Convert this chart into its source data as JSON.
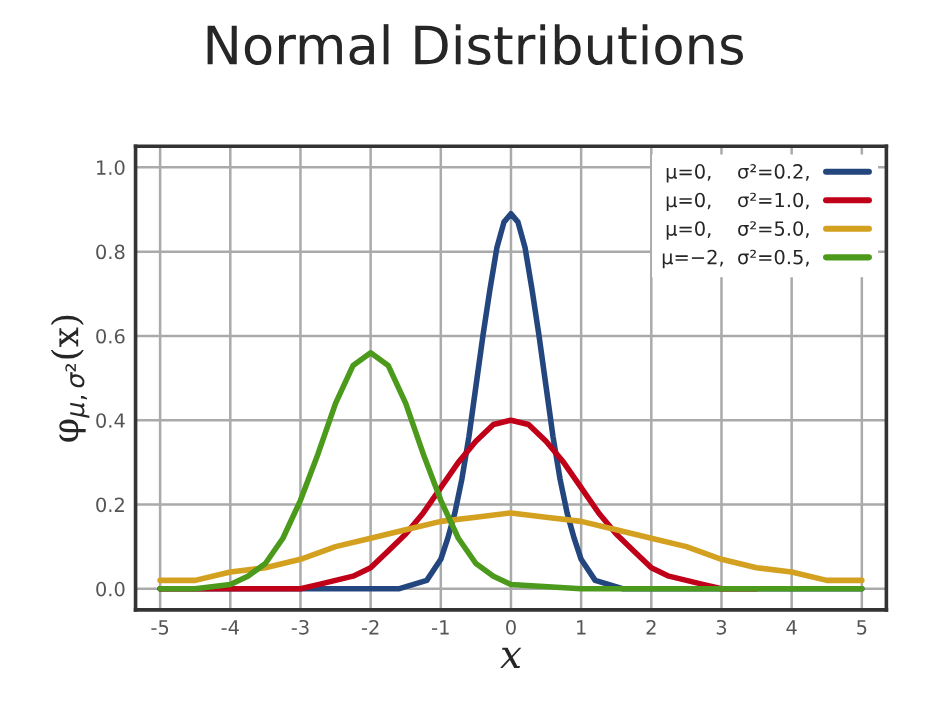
{
  "chart_data": {
    "type": "line",
    "title": "Normal Distributions",
    "xlabel": "x",
    "ylabel": "φ$_{μ,σ²}$(x)",
    "xlim": [
      -5.35,
      5.35
    ],
    "ylim": [
      -0.05,
      1.05
    ],
    "xticks": [
      -5,
      -4,
      -3,
      -2,
      -1,
      0,
      1,
      2,
      3,
      4,
      5
    ],
    "yticks": [
      {
        "value": 0,
        "label": "0.0"
      },
      0.2,
      0.4,
      0.6,
      0.8,
      {
        "value": 1,
        "label": "1.0"
      }
    ],
    "grid": true,
    "legend": "top right",
    "marker": "none",
    "line_style": "solid",
    "series": [
      {
        "name": "μ=0,    σ²=0.2,",
        "color": "#24467e",
        "x": [
          -5,
          -2,
          -1.6,
          -1.4,
          -1.2,
          -1,
          -0.9,
          -0.8,
          -0.7,
          -0.6,
          -0.5,
          -0.4,
          -0.3,
          -0.2,
          -0.1,
          0,
          0.1,
          0.2,
          0.3,
          0.4,
          0.5,
          0.6,
          0.7,
          0.8,
          0.9,
          1,
          1.2,
          1.4,
          1.6,
          2,
          5
        ],
        "values": [
          0,
          0,
          0,
          0.01,
          0.02,
          0.07,
          0.12,
          0.18,
          0.26,
          0.36,
          0.48,
          0.6,
          0.71,
          0.81,
          0.87,
          0.89,
          0.87,
          0.81,
          0.71,
          0.6,
          0.48,
          0.36,
          0.26,
          0.18,
          0.12,
          0.07,
          0.02,
          0.01,
          0,
          0,
          0
        ]
      },
      {
        "name": "μ=0,    σ²=1.0,",
        "color": "#c00018",
        "x": [
          -5,
          -4,
          -3.5,
          -3,
          -2.75,
          -2.5,
          -2.25,
          -2,
          -1.75,
          -1.5,
          -1.25,
          -1,
          -0.75,
          -0.5,
          -0.25,
          0,
          0.25,
          0.5,
          0.75,
          1,
          1.25,
          1.5,
          1.75,
          2,
          2.25,
          2.5,
          2.75,
          3,
          3.5
        ],
        "values": [
          0,
          0,
          0,
          0,
          0.01,
          0.02,
          0.03,
          0.05,
          0.09,
          0.13,
          0.18,
          0.24,
          0.3,
          0.35,
          0.39,
          0.4,
          0.39,
          0.35,
          0.3,
          0.24,
          0.18,
          0.13,
          0.09,
          0.05,
          0.03,
          0.02,
          0.01,
          0,
          0
        ]
      },
      {
        "name": "μ=0,    σ²=5.0,",
        "color": "#d4a020",
        "x": [
          -5,
          -4.5,
          -4,
          -3.5,
          -3,
          -2.5,
          -2,
          -1.5,
          -1,
          -0.5,
          0,
          0.5,
          1,
          1.5,
          2,
          2.5,
          3,
          3.5,
          4,
          4.5,
          5
        ],
        "values": [
          0.02,
          0.02,
          0.04,
          0.05,
          0.07,
          0.1,
          0.12,
          0.14,
          0.16,
          0.17,
          0.18,
          0.17,
          0.16,
          0.14,
          0.12,
          0.1,
          0.07,
          0.05,
          0.04,
          0.02,
          0.02
        ]
      },
      {
        "name": "μ=−2,  σ²=0.5,",
        "color": "#4c9a1c",
        "x": [
          -5,
          -4.5,
          -4,
          -3.75,
          -3.5,
          -3.25,
          -3,
          -2.75,
          -2.5,
          -2.25,
          -2,
          -1.75,
          -1.5,
          -1.25,
          -1,
          -0.75,
          -0.5,
          -0.25,
          0,
          1,
          5
        ],
        "values": [
          0,
          0,
          0.01,
          0.03,
          0.06,
          0.12,
          0.21,
          0.32,
          0.44,
          0.53,
          0.56,
          0.53,
          0.44,
          0.32,
          0.21,
          0.12,
          0.06,
          0.03,
          0.01,
          0,
          0
        ]
      }
    ]
  }
}
